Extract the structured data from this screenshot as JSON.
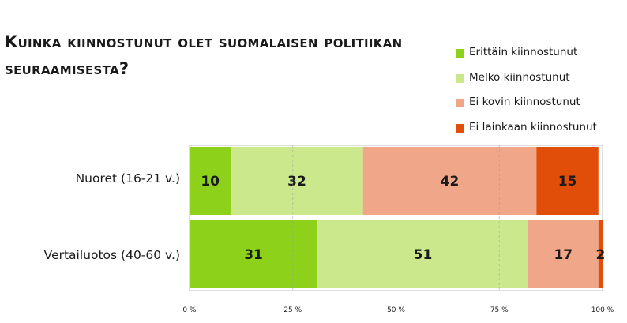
{
  "chart_data": {
    "type": "bar",
    "orientation": "horizontal",
    "stacked": true,
    "title": "Kuinka kiinnostunut olet suomalaisen politiikan seuraamisesta?",
    "categories": [
      "Nuoret (16-21 v.)",
      "Vertailuotos (40-60 v.)"
    ],
    "series": [
      {
        "name": "Erittäin kiinnostunut",
        "color": "#8ed11a",
        "values": [
          10,
          31
        ],
        "labels": [
          "10",
          "31"
        ]
      },
      {
        "name": "Melko kiinnostunut",
        "color": "#cbe88c",
        "values": [
          32,
          51
        ],
        "labels": [
          "32",
          "51"
        ]
      },
      {
        "name": "Ei kovin kiinnostunut",
        "color": "#f0a688",
        "values": [
          42,
          17
        ],
        "labels": [
          "42",
          "17"
        ]
      },
      {
        "name": "Ei lainkaan kiinnostunut",
        "color": "#e04e0a",
        "values": [
          15,
          2
        ],
        "labels": [
          "15",
          "2"
        ]
      }
    ],
    "xlim": [
      0,
      100
    ],
    "xticks": [
      0,
      25,
      50,
      75,
      100
    ],
    "xtick_labels": [
      "0 %",
      "25 %",
      "50 %",
      "75 %",
      "100 %"
    ],
    "grid": true,
    "legend": "top-right"
  }
}
